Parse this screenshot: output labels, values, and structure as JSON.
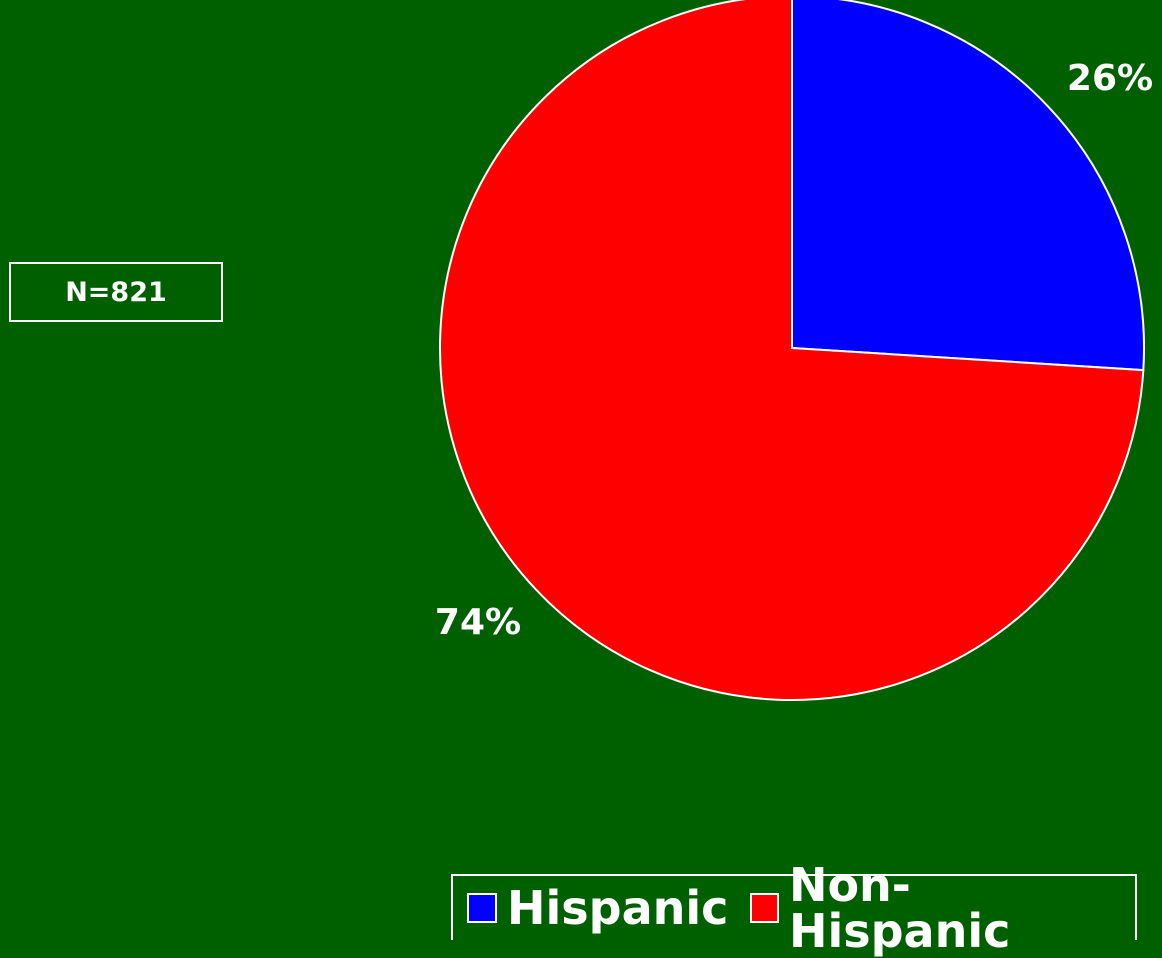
{
  "chart_data": {
    "type": "pie",
    "annotation": "N=821",
    "slices": [
      {
        "name": "Hispanic",
        "value": 26,
        "label": "26%",
        "color": "#0000ff"
      },
      {
        "name": "Non-Hispanic",
        "value": 74,
        "label": "74%",
        "color": "#ff0000"
      }
    ],
    "legend_placement": "bottom-right",
    "start_angle_deg": 0,
    "direction": "clockwise"
  },
  "colors": {
    "background": "#006000",
    "outline": "#ffffff"
  }
}
